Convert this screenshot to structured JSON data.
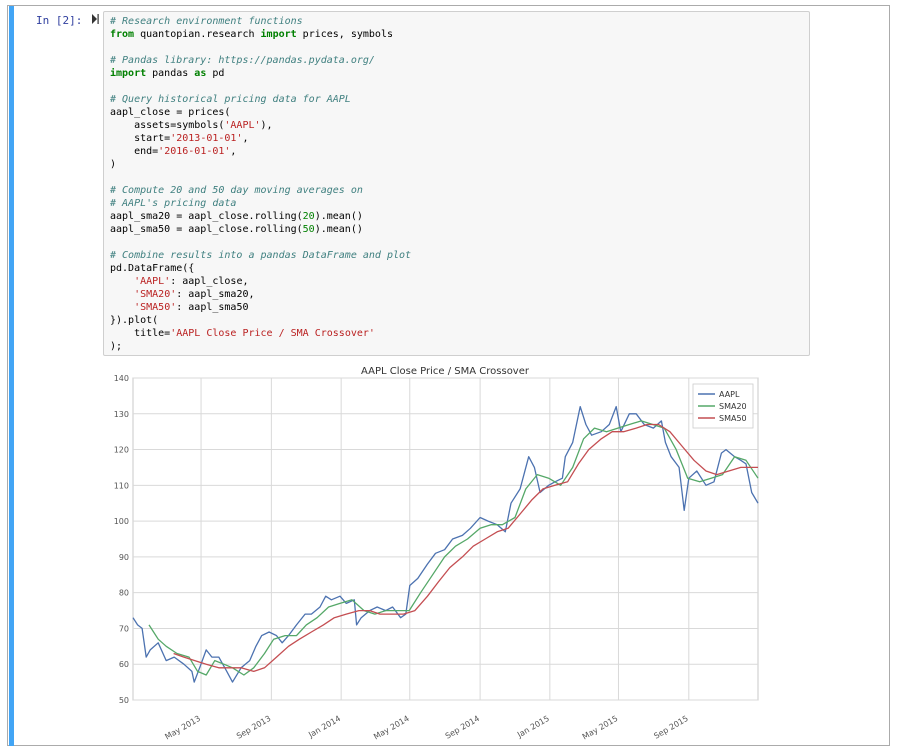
{
  "cell": {
    "prompt": "In [2]:",
    "code_lines": [
      [
        {
          "t": "cm",
          "v": "# Research environment functions"
        }
      ],
      [
        {
          "t": "kw",
          "v": "from"
        },
        {
          "t": "plain",
          "v": " quantopian.research "
        },
        {
          "t": "kw",
          "v": "import"
        },
        {
          "t": "plain",
          "v": " prices, symbols"
        }
      ],
      [],
      [
        {
          "t": "cm",
          "v": "# Pandas library: https://pandas.pydata.org/"
        }
      ],
      [
        {
          "t": "kw",
          "v": "import"
        },
        {
          "t": "plain",
          "v": " pandas "
        },
        {
          "t": "kw",
          "v": "as"
        },
        {
          "t": "plain",
          "v": " pd"
        }
      ],
      [],
      [
        {
          "t": "cm",
          "v": "# Query historical pricing data for AAPL"
        }
      ],
      [
        {
          "t": "plain",
          "v": "aapl_close = prices("
        }
      ],
      [
        {
          "t": "plain",
          "v": "    assets=symbols("
        },
        {
          "t": "str",
          "v": "'AAPL'"
        },
        {
          "t": "plain",
          "v": "),"
        }
      ],
      [
        {
          "t": "plain",
          "v": "    start="
        },
        {
          "t": "str",
          "v": "'2013-01-01'"
        },
        {
          "t": "plain",
          "v": ","
        }
      ],
      [
        {
          "t": "plain",
          "v": "    end="
        },
        {
          "t": "str",
          "v": "'2016-01-01'"
        },
        {
          "t": "plain",
          "v": ","
        }
      ],
      [
        {
          "t": "plain",
          "v": ")"
        }
      ],
      [],
      [
        {
          "t": "cm",
          "v": "# Compute 20 and 50 day moving averages on"
        }
      ],
      [
        {
          "t": "cm",
          "v": "# AAPL's pricing data"
        }
      ],
      [
        {
          "t": "plain",
          "v": "aapl_sma20 = aapl_close.rolling("
        },
        {
          "t": "num",
          "v": "20"
        },
        {
          "t": "plain",
          "v": ").mean()"
        }
      ],
      [
        {
          "t": "plain",
          "v": "aapl_sma50 = aapl_close.rolling("
        },
        {
          "t": "num",
          "v": "50"
        },
        {
          "t": "plain",
          "v": ").mean()"
        }
      ],
      [],
      [
        {
          "t": "cm",
          "v": "# Combine results into a pandas DataFrame and plot"
        }
      ],
      [
        {
          "t": "plain",
          "v": "pd.DataFrame({"
        }
      ],
      [
        {
          "t": "plain",
          "v": "    "
        },
        {
          "t": "str",
          "v": "'AAPL'"
        },
        {
          "t": "plain",
          "v": ": aapl_close,"
        }
      ],
      [
        {
          "t": "plain",
          "v": "    "
        },
        {
          "t": "str",
          "v": "'SMA20'"
        },
        {
          "t": "plain",
          "v": ": aapl_sma20,"
        }
      ],
      [
        {
          "t": "plain",
          "v": "    "
        },
        {
          "t": "str",
          "v": "'SMA50'"
        },
        {
          "t": "plain",
          "v": ": aapl_sma50"
        }
      ],
      [
        {
          "t": "plain",
          "v": "}).plot("
        }
      ],
      [
        {
          "t": "plain",
          "v": "    title="
        },
        {
          "t": "str",
          "v": "'AAPL Close Price / SMA Crossover'"
        }
      ],
      [
        {
          "t": "plain",
          "v": ");"
        }
      ]
    ]
  },
  "colors": {
    "aapl": "#4c72b0",
    "sma20": "#55a868",
    "sma50": "#c44e52",
    "plot_bg": "#ffffff",
    "grid": "#d9d9d9",
    "selected_bar": "#42a5f5"
  },
  "chart_data": {
    "type": "line",
    "title": "AAPL Close Price / SMA Crossover",
    "xlabel": "",
    "ylabel": "",
    "x_range": [
      "2013-01-02",
      "2015-12-31"
    ],
    "ylim": [
      50,
      140
    ],
    "yticks": [
      50,
      60,
      70,
      80,
      90,
      100,
      110,
      120,
      130,
      140
    ],
    "xticks": [
      {
        "date": "2013-05-01",
        "label": "May 2013"
      },
      {
        "date": "2013-09-01",
        "label": "Sep 2013"
      },
      {
        "date": "2014-01-01",
        "label": "Jan 2014"
      },
      {
        "date": "2014-05-01",
        "label": "May 2014"
      },
      {
        "date": "2014-09-01",
        "label": "Sep 2014"
      },
      {
        "date": "2015-01-01",
        "label": "Jan 2015"
      },
      {
        "date": "2015-05-01",
        "label": "May 2015"
      },
      {
        "date": "2015-09-01",
        "label": "Sep 2015"
      }
    ],
    "grid": true,
    "legend": "top-right",
    "series": [
      {
        "name": "AAPL",
        "points": [
          [
            "2013-01-02",
            73
          ],
          [
            "2013-01-10",
            71
          ],
          [
            "2013-01-18",
            70
          ],
          [
            "2013-01-25",
            62
          ],
          [
            "2013-02-01",
            64
          ],
          [
            "2013-02-15",
            66
          ],
          [
            "2013-03-01",
            61
          ],
          [
            "2013-03-15",
            62
          ],
          [
            "2013-04-01",
            60
          ],
          [
            "2013-04-15",
            58
          ],
          [
            "2013-04-19",
            55
          ],
          [
            "2013-05-01",
            60
          ],
          [
            "2013-05-10",
            64
          ],
          [
            "2013-05-20",
            62
          ],
          [
            "2013-06-01",
            62
          ],
          [
            "2013-06-15",
            58
          ],
          [
            "2013-06-25",
            55
          ],
          [
            "2013-07-10",
            59
          ],
          [
            "2013-07-25",
            61
          ],
          [
            "2013-08-05",
            65
          ],
          [
            "2013-08-15",
            68
          ],
          [
            "2013-08-28",
            69
          ],
          [
            "2013-09-10",
            68
          ],
          [
            "2013-09-20",
            66
          ],
          [
            "2013-10-01",
            68
          ],
          [
            "2013-10-15",
            71
          ],
          [
            "2013-10-30",
            74
          ],
          [
            "2013-11-10",
            74
          ],
          [
            "2013-11-25",
            76
          ],
          [
            "2013-12-05",
            79
          ],
          [
            "2013-12-15",
            78
          ],
          [
            "2013-12-30",
            79
          ],
          [
            "2014-01-10",
            77
          ],
          [
            "2014-01-24",
            78
          ],
          [
            "2014-01-28",
            71
          ],
          [
            "2014-02-05",
            73
          ],
          [
            "2014-02-20",
            75
          ],
          [
            "2014-03-05",
            76
          ],
          [
            "2014-03-20",
            75
          ],
          [
            "2014-04-01",
            76
          ],
          [
            "2014-04-15",
            73
          ],
          [
            "2014-04-24",
            74
          ],
          [
            "2014-05-01",
            82
          ],
          [
            "2014-05-15",
            84
          ],
          [
            "2014-06-01",
            88
          ],
          [
            "2014-06-15",
            91
          ],
          [
            "2014-07-01",
            92
          ],
          [
            "2014-07-15",
            95
          ],
          [
            "2014-08-01",
            96
          ],
          [
            "2014-08-15",
            98
          ],
          [
            "2014-09-01",
            101
          ],
          [
            "2014-09-15",
            100
          ],
          [
            "2014-10-01",
            99
          ],
          [
            "2014-10-15",
            97
          ],
          [
            "2014-10-25",
            105
          ],
          [
            "2014-11-10",
            109
          ],
          [
            "2014-11-25",
            118
          ],
          [
            "2014-12-05",
            115
          ],
          [
            "2014-12-15",
            108
          ],
          [
            "2014-12-30",
            110
          ],
          [
            "2015-01-10",
            111
          ],
          [
            "2015-01-23",
            112
          ],
          [
            "2015-01-28",
            118
          ],
          [
            "2015-02-10",
            122
          ],
          [
            "2015-02-23",
            132
          ],
          [
            "2015-03-05",
            127
          ],
          [
            "2015-03-15",
            124
          ],
          [
            "2015-04-01",
            125
          ],
          [
            "2015-04-15",
            127
          ],
          [
            "2015-04-27",
            132
          ],
          [
            "2015-05-05",
            125
          ],
          [
            "2015-05-20",
            130
          ],
          [
            "2015-06-01",
            130
          ],
          [
            "2015-06-15",
            127
          ],
          [
            "2015-07-01",
            126
          ],
          [
            "2015-07-15",
            128
          ],
          [
            "2015-07-22",
            122
          ],
          [
            "2015-08-01",
            118
          ],
          [
            "2015-08-15",
            115
          ],
          [
            "2015-08-24",
            103
          ],
          [
            "2015-09-01",
            112
          ],
          [
            "2015-09-15",
            114
          ],
          [
            "2015-10-01",
            110
          ],
          [
            "2015-10-15",
            111
          ],
          [
            "2015-10-28",
            119
          ],
          [
            "2015-11-05",
            120
          ],
          [
            "2015-11-20",
            118
          ],
          [
            "2015-12-01",
            117
          ],
          [
            "2015-12-10",
            116
          ],
          [
            "2015-12-20",
            108
          ],
          [
            "2015-12-31",
            105
          ]
        ]
      },
      {
        "name": "SMA20",
        "points": [
          [
            "2013-01-30",
            71
          ],
          [
            "2013-02-15",
            67
          ],
          [
            "2013-03-01",
            65
          ],
          [
            "2013-03-20",
            63
          ],
          [
            "2013-04-10",
            62
          ],
          [
            "2013-04-25",
            58
          ],
          [
            "2013-05-10",
            57
          ],
          [
            "2013-05-25",
            61
          ],
          [
            "2013-06-10",
            60
          ],
          [
            "2013-06-25",
            59
          ],
          [
            "2013-07-15",
            57
          ],
          [
            "2013-08-01",
            59
          ],
          [
            "2013-08-20",
            63
          ],
          [
            "2013-09-05",
            67
          ],
          [
            "2013-09-25",
            68
          ],
          [
            "2013-10-15",
            68
          ],
          [
            "2013-11-01",
            71
          ],
          [
            "2013-11-20",
            73
          ],
          [
            "2013-12-10",
            76
          ],
          [
            "2013-12-30",
            77
          ],
          [
            "2014-01-20",
            78
          ],
          [
            "2014-02-10",
            75
          ],
          [
            "2014-03-01",
            74
          ],
          [
            "2014-03-20",
            75
          ],
          [
            "2014-04-10",
            75
          ],
          [
            "2014-04-30",
            75
          ],
          [
            "2014-05-20",
            80
          ],
          [
            "2014-06-10",
            85
          ],
          [
            "2014-07-01",
            90
          ],
          [
            "2014-07-20",
            93
          ],
          [
            "2014-08-10",
            95
          ],
          [
            "2014-09-01",
            98
          ],
          [
            "2014-09-20",
            99
          ],
          [
            "2014-10-10",
            99
          ],
          [
            "2014-11-01",
            101
          ],
          [
            "2014-11-20",
            109
          ],
          [
            "2014-12-10",
            113
          ],
          [
            "2014-12-30",
            112
          ],
          [
            "2015-01-20",
            110
          ],
          [
            "2015-02-10",
            115
          ],
          [
            "2015-03-01",
            123
          ],
          [
            "2015-03-20",
            126
          ],
          [
            "2015-04-10",
            125
          ],
          [
            "2015-04-30",
            126
          ],
          [
            "2015-05-20",
            127
          ],
          [
            "2015-06-10",
            128
          ],
          [
            "2015-06-30",
            127
          ],
          [
            "2015-07-20",
            126
          ],
          [
            "2015-08-10",
            120
          ],
          [
            "2015-08-30",
            112
          ],
          [
            "2015-09-20",
            111
          ],
          [
            "2015-10-10",
            112
          ],
          [
            "2015-10-30",
            113
          ],
          [
            "2015-11-20",
            118
          ],
          [
            "2015-12-10",
            117
          ],
          [
            "2015-12-31",
            112
          ]
        ]
      },
      {
        "name": "SMA50",
        "points": [
          [
            "2013-03-14",
            63
          ],
          [
            "2013-04-01",
            62
          ],
          [
            "2013-04-20",
            61
          ],
          [
            "2013-05-10",
            60
          ],
          [
            "2013-06-01",
            59
          ],
          [
            "2013-06-20",
            59
          ],
          [
            "2013-07-10",
            59
          ],
          [
            "2013-08-01",
            58
          ],
          [
            "2013-08-20",
            59
          ],
          [
            "2013-09-10",
            62
          ],
          [
            "2013-10-01",
            65
          ],
          [
            "2013-10-20",
            67
          ],
          [
            "2013-11-10",
            69
          ],
          [
            "2013-12-01",
            71
          ],
          [
            "2013-12-20",
            73
          ],
          [
            "2014-01-10",
            74
          ],
          [
            "2014-02-01",
            75
          ],
          [
            "2014-02-20",
            75
          ],
          [
            "2014-03-10",
            74
          ],
          [
            "2014-04-01",
            74
          ],
          [
            "2014-04-20",
            74
          ],
          [
            "2014-05-10",
            75
          ],
          [
            "2014-06-01",
            79
          ],
          [
            "2014-06-20",
            83
          ],
          [
            "2014-07-10",
            87
          ],
          [
            "2014-08-01",
            90
          ],
          [
            "2014-08-20",
            93
          ],
          [
            "2014-09-10",
            95
          ],
          [
            "2014-10-01",
            97
          ],
          [
            "2014-10-20",
            98
          ],
          [
            "2014-11-10",
            102
          ],
          [
            "2014-12-01",
            106
          ],
          [
            "2014-12-20",
            109
          ],
          [
            "2015-01-10",
            110
          ],
          [
            "2015-02-01",
            111
          ],
          [
            "2015-02-20",
            116
          ],
          [
            "2015-03-10",
            120
          ],
          [
            "2015-04-01",
            123
          ],
          [
            "2015-04-20",
            125
          ],
          [
            "2015-05-10",
            125
          ],
          [
            "2015-06-01",
            126
          ],
          [
            "2015-06-20",
            127
          ],
          [
            "2015-07-10",
            127
          ],
          [
            "2015-07-30",
            125
          ],
          [
            "2015-08-20",
            121
          ],
          [
            "2015-09-10",
            117
          ],
          [
            "2015-10-01",
            114
          ],
          [
            "2015-10-20",
            113
          ],
          [
            "2015-11-10",
            114
          ],
          [
            "2015-12-01",
            115
          ],
          [
            "2015-12-31",
            115
          ]
        ]
      }
    ]
  }
}
